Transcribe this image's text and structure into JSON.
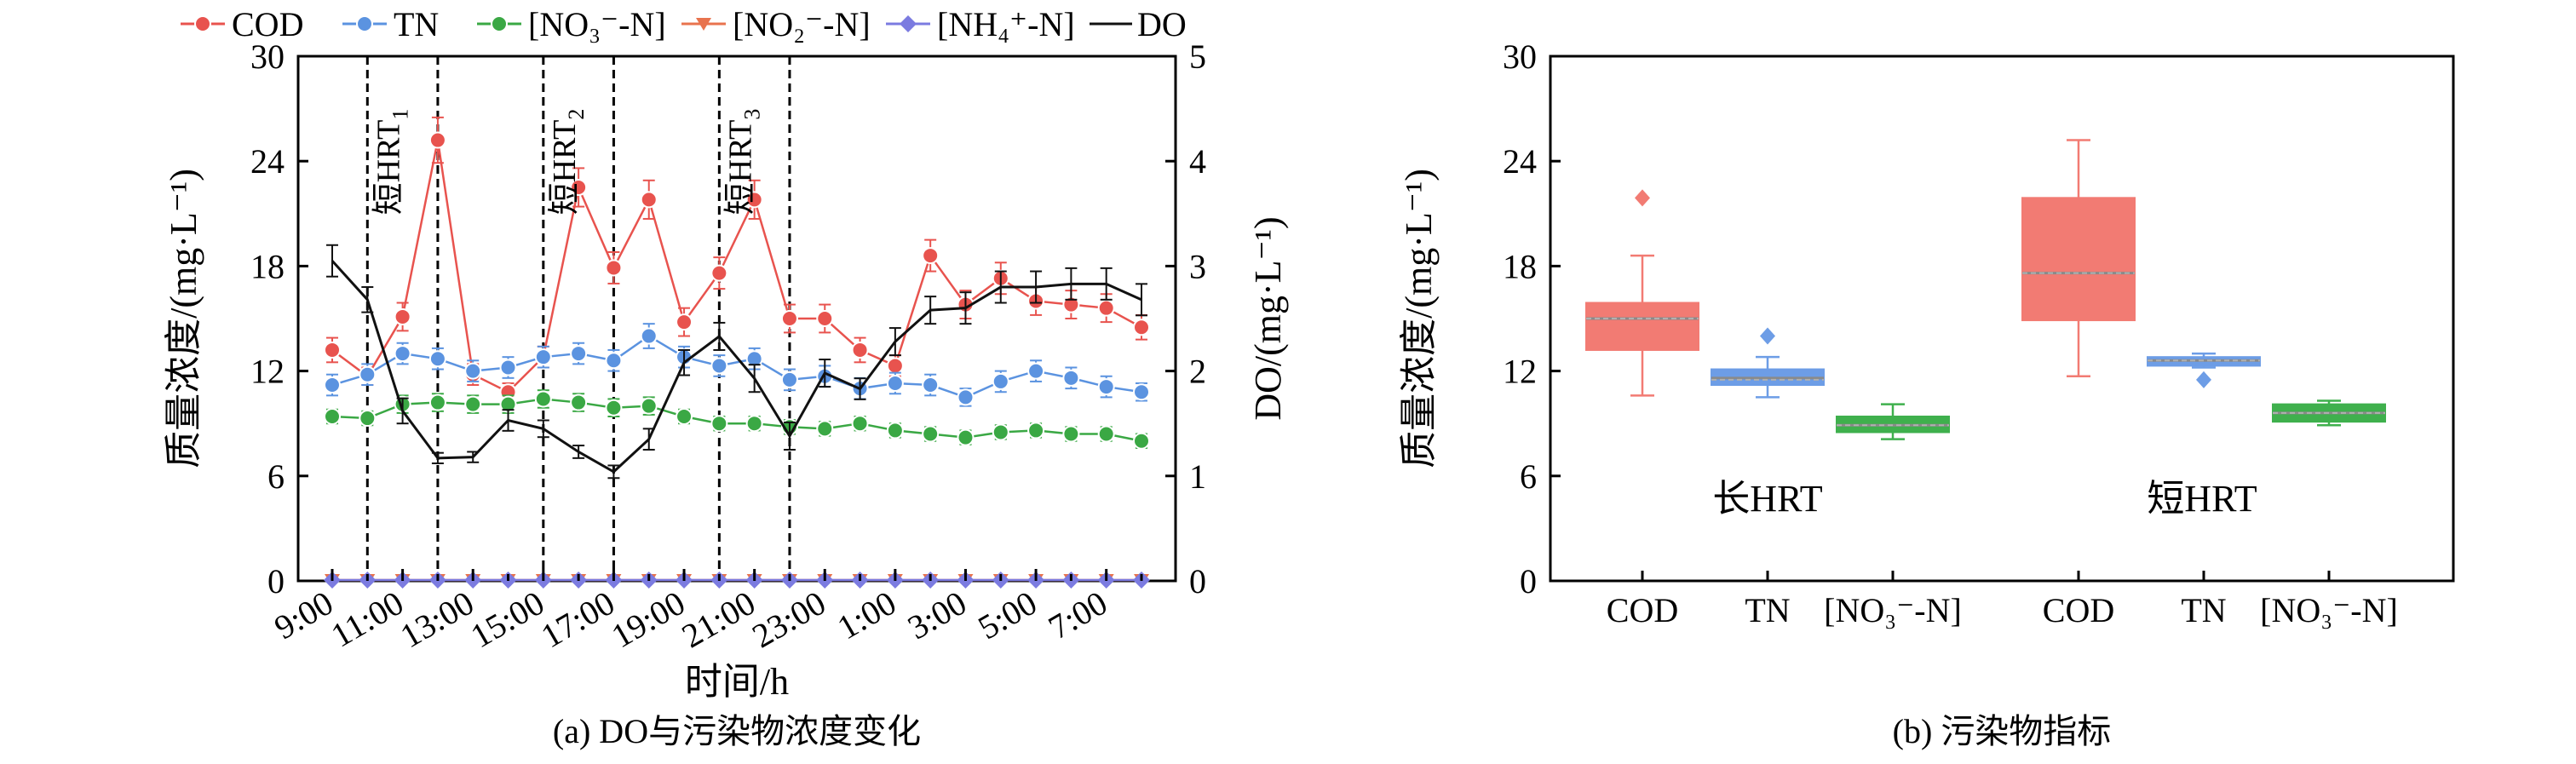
{
  "chart_data": [
    {
      "type": "line",
      "caption": "(a) DO与污染物浓度变化",
      "xlabel": "时间/h",
      "ylabel_left": "质量浓度/(mg·L⁻¹)",
      "ylabel_right": "DO/(mg·L⁻¹)",
      "ylim_left": [
        0,
        30
      ],
      "ylim_right": [
        0,
        5
      ],
      "yticks_left": [
        "0",
        "6",
        "12",
        "18",
        "24",
        "30"
      ],
      "yticks_right": [
        "0",
        "1",
        "2",
        "3",
        "4",
        "5"
      ],
      "x_tick_labels": [
        "9:00",
        "11:00",
        "13:00",
        "15:00",
        "17:00",
        "19:00",
        "21:00",
        "23:00",
        "1:00",
        "3:00",
        "5:00",
        "7:00"
      ],
      "x_tick_positions": [
        0,
        2,
        4,
        6,
        8,
        10,
        12,
        14,
        16,
        18,
        20,
        22
      ],
      "x": [
        0,
        1,
        2,
        3,
        4,
        5,
        6,
        7,
        8,
        9,
        10,
        11,
        12,
        13,
        14,
        15,
        16,
        17,
        18,
        19,
        20,
        21,
        22,
        23
      ],
      "period_lines_x": [
        1,
        3,
        6,
        8,
        11,
        13
      ],
      "period_labels": [
        {
          "text": "短HRT",
          "sub": "1",
          "x": 2
        },
        {
          "text": "短HRT",
          "sub": "2",
          "x": 7
        },
        {
          "text": "短HRT",
          "sub": "3",
          "x": 12
        }
      ],
      "legend": [
        "COD",
        "TN",
        "[NO₃⁻-N]",
        "[NO₂⁻-N]",
        "[NH₄⁺-N]",
        "DO"
      ],
      "series": [
        {
          "name": "COD",
          "axis": "left",
          "color": "#e8534e",
          "marker": "circle",
          "values": [
            13.2,
            11.7,
            15.1,
            25.2,
            11.8,
            10.8,
            12.8,
            22.5,
            17.9,
            21.8,
            14.8,
            17.6,
            21.8,
            15.0,
            15.0,
            13.2,
            12.3,
            18.6,
            15.8,
            17.3,
            16.0,
            15.8,
            15.6,
            14.5
          ],
          "errors": [
            0.7,
            0.5,
            0.8,
            1.3,
            0.6,
            0.5,
            0.6,
            1.1,
            0.9,
            1.1,
            0.8,
            0.9,
            1.1,
            0.8,
            0.8,
            0.7,
            0.6,
            0.9,
            0.8,
            0.9,
            0.8,
            0.8,
            0.8,
            0.7
          ]
        },
        {
          "name": "TN",
          "axis": "left",
          "color": "#5b93e0",
          "marker": "circle",
          "values": [
            11.2,
            11.8,
            13.0,
            12.7,
            12.0,
            12.2,
            12.8,
            13.0,
            12.6,
            14.0,
            12.8,
            12.3,
            12.7,
            11.5,
            11.7,
            11.0,
            11.3,
            11.2,
            10.5,
            11.4,
            12.0,
            11.6,
            11.1,
            10.8
          ],
          "errors": [
            0.6,
            0.6,
            0.6,
            0.6,
            0.6,
            0.6,
            0.6,
            0.6,
            0.6,
            0.7,
            0.6,
            0.6,
            0.6,
            0.6,
            0.6,
            0.6,
            0.6,
            0.6,
            0.5,
            0.6,
            0.6,
            0.6,
            0.6,
            0.5
          ]
        },
        {
          "name": "[NO₃⁻-N]",
          "axis": "left",
          "color": "#3aa844",
          "marker": "circle",
          "values": [
            9.4,
            9.3,
            10.1,
            10.2,
            10.1,
            10.1,
            10.4,
            10.2,
            9.9,
            10.0,
            9.4,
            9.0,
            9.0,
            8.8,
            8.7,
            9.0,
            8.6,
            8.4,
            8.2,
            8.5,
            8.6,
            8.4,
            8.4,
            8.0
          ],
          "errors": [
            0.4,
            0.4,
            0.5,
            0.5,
            0.5,
            0.5,
            0.5,
            0.5,
            0.5,
            0.5,
            0.4,
            0.4,
            0.4,
            0.4,
            0.4,
            0.4,
            0.4,
            0.4,
            0.4,
            0.4,
            0.4,
            0.4,
            0.4,
            0.4
          ]
        },
        {
          "name": "[NO₂⁻-N]",
          "axis": "left",
          "color": "#e8734e",
          "marker": "triangle-down",
          "values": [
            0.05,
            0.05,
            0.05,
            0.05,
            0.05,
            0.05,
            0.05,
            0.05,
            0.05,
            0.05,
            0.05,
            0.05,
            0.05,
            0.05,
            0.05,
            0.05,
            0.05,
            0.05,
            0.05,
            0.05,
            0.05,
            0.05,
            0.05,
            0.05
          ]
        },
        {
          "name": "[NH₄⁺-N]",
          "axis": "left",
          "color": "#7b7be0",
          "marker": "diamond",
          "values": [
            0.05,
            0.05,
            0.05,
            0.05,
            0.05,
            0.05,
            0.05,
            0.05,
            0.05,
            0.05,
            0.05,
            0.05,
            0.05,
            0.05,
            0.05,
            0.05,
            0.05,
            0.05,
            0.05,
            0.05,
            0.05,
            0.05,
            0.05,
            0.05
          ]
        },
        {
          "name": "DO",
          "axis": "right",
          "color": "#111111",
          "marker": "none",
          "values": [
            3.05,
            2.68,
            1.62,
            1.17,
            1.18,
            1.53,
            1.45,
            1.23,
            1.04,
            1.35,
            2.08,
            2.33,
            1.93,
            1.38,
            1.98,
            1.83,
            2.28,
            2.58,
            2.6,
            2.8,
            2.8,
            2.83,
            2.83,
            2.68
          ],
          "errors": [
            0.15,
            0.12,
            0.12,
            0.05,
            0.05,
            0.1,
            0.08,
            0.06,
            0.06,
            0.1,
            0.12,
            0.13,
            0.13,
            0.13,
            0.13,
            0.1,
            0.13,
            0.13,
            0.15,
            0.15,
            0.15,
            0.15,
            0.15,
            0.15
          ]
        }
      ]
    },
    {
      "type": "box",
      "caption": "(b) 污染物指标",
      "ylabel": "质量浓度/(mg·L⁻¹)",
      "ylim": [
        0,
        30
      ],
      "yticks": [
        "0",
        "6",
        "12",
        "18",
        "24",
        "30"
      ],
      "categories": [
        "COD",
        "TN",
        "[NO₃⁻-N]",
        "COD",
        "TN",
        "[NO₃⁻-N]"
      ],
      "group_labels": [
        "长HRT",
        "短HRT"
      ],
      "boxes": [
        {
          "group": "长HRT",
          "name": "COD",
          "color": "#f27b73",
          "q1": 13.2,
          "median": 15.0,
          "mean": 15.0,
          "q3": 15.9,
          "whisker_low": 10.6,
          "whisker_high": 18.6,
          "outliers": [
            21.9
          ]
        },
        {
          "group": "长HRT",
          "name": "TN",
          "color": "#6d9de6",
          "q1": 11.2,
          "median": 11.6,
          "mean": 11.5,
          "q3": 12.1,
          "whisker_low": 10.5,
          "whisker_high": 12.8,
          "outliers": [
            14.0
          ]
        },
        {
          "group": "长HRT",
          "name": "[NO₃⁻-N]",
          "color": "#3fb04d",
          "q1": 8.5,
          "median": 8.9,
          "mean": 8.9,
          "q3": 9.4,
          "whisker_low": 8.1,
          "whisker_high": 10.1,
          "outliers": []
        },
        {
          "group": "短HRT",
          "name": "COD",
          "color": "#f27b73",
          "q1": 14.9,
          "median": 17.6,
          "mean": 17.6,
          "q3": 21.9,
          "whisker_low": 11.7,
          "whisker_high": 25.2,
          "outliers": []
        },
        {
          "group": "短HRT",
          "name": "TN",
          "color": "#6d9de6",
          "q1": 12.3,
          "median": 12.6,
          "mean": 12.6,
          "q3": 12.8,
          "whisker_low": 12.2,
          "whisker_high": 13.0,
          "outliers": [
            11.5
          ]
        },
        {
          "group": "短HRT",
          "name": "[NO₃⁻-N]",
          "color": "#3fb04d",
          "q1": 9.1,
          "median": 9.6,
          "mean": 9.6,
          "q3": 10.1,
          "whisker_low": 8.9,
          "whisker_high": 10.3,
          "outliers": []
        }
      ]
    }
  ]
}
